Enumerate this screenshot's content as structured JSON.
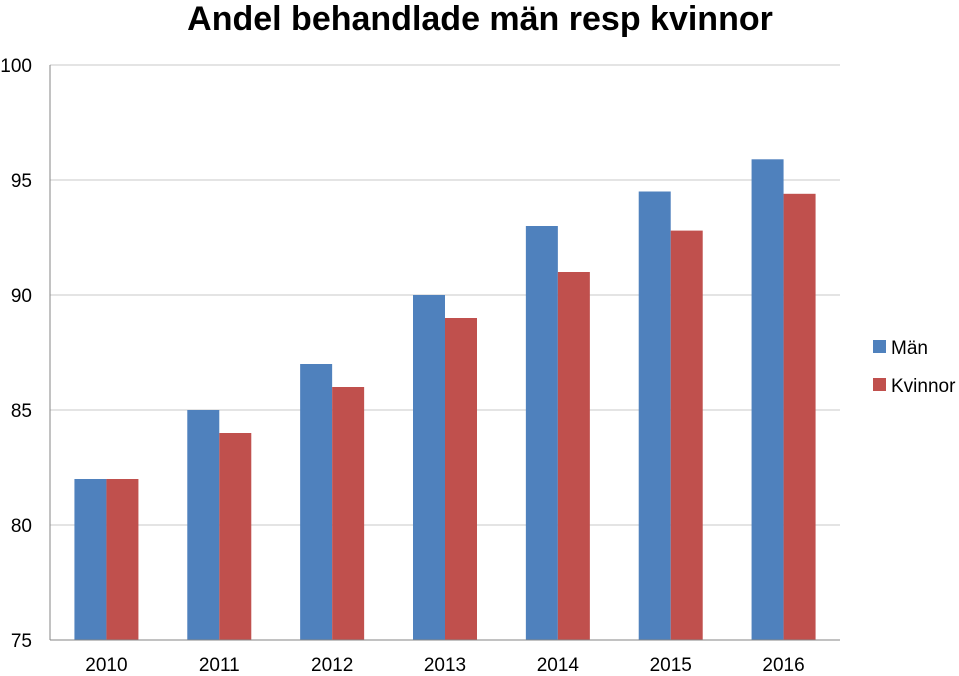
{
  "chart_data": {
    "type": "bar",
    "title": "Andel behandlade män resp kvinnor",
    "xlabel": "",
    "ylabel": "",
    "categories": [
      "2010",
      "2011",
      "2012",
      "2013",
      "2014",
      "2015",
      "2016"
    ],
    "series": [
      {
        "name": "Män",
        "color": "#4f81bd",
        "values": [
          82,
          85,
          87,
          90,
          93,
          94.5,
          95.9
        ]
      },
      {
        "name": "Kvinnor",
        "color": "#c0504d",
        "values": [
          82,
          84,
          86,
          89,
          91,
          92.8,
          94.4
        ]
      }
    ],
    "ylim": [
      75,
      100
    ],
    "yticks": [
      "75",
      "80",
      "85",
      "90",
      "95",
      "100"
    ],
    "grid": true,
    "legend_position": "right"
  }
}
